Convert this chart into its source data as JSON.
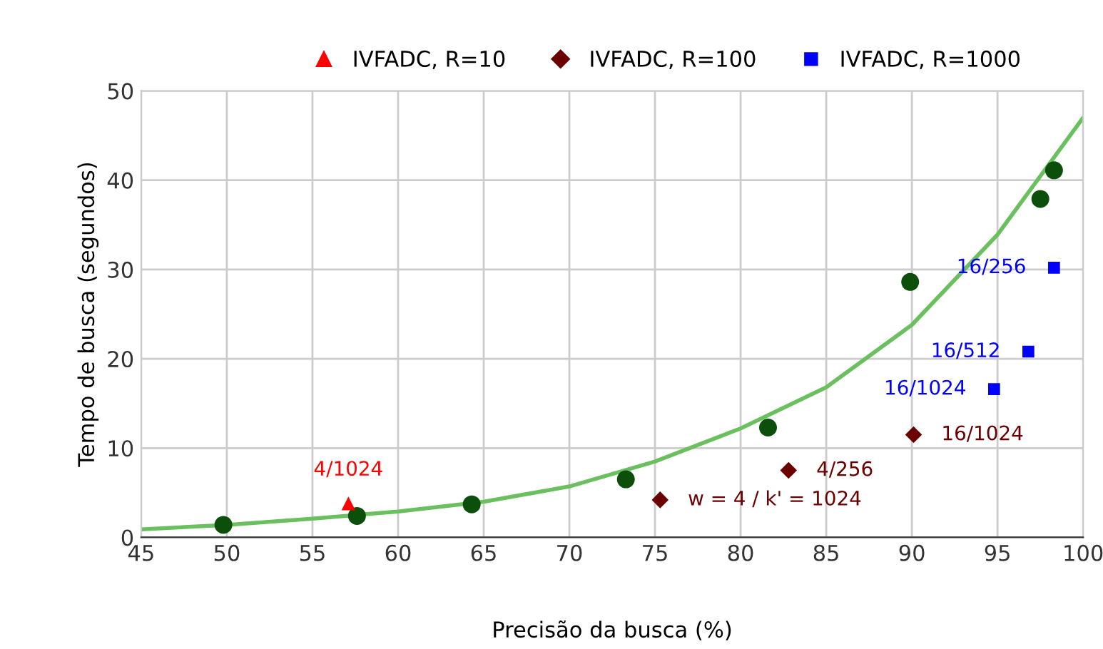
{
  "chart_data": {
    "type": "scatter",
    "xlabel": "Precisão da busca (%)",
    "ylabel": "Tempo de busca (segundos)",
    "xlim": [
      45,
      100
    ],
    "ylim": [
      0,
      50
    ],
    "xticks": [
      45,
      50,
      55,
      60,
      65,
      70,
      75,
      80,
      85,
      90,
      95,
      100
    ],
    "yticks": [
      0,
      10,
      20,
      30,
      40,
      50
    ],
    "grid": true,
    "legend": "top",
    "series": [
      {
        "type": "line",
        "color": "#6abf5e",
        "marker": "none",
        "x": [
          45,
          50,
          55,
          60,
          65,
          70,
          75,
          80,
          85,
          90,
          95,
          100
        ],
        "values": [
          0.9,
          1.4,
          2.1,
          2.9,
          4.0,
          5.7,
          8.5,
          12.2,
          16.8,
          23.8,
          33.9,
          47
        ]
      },
      {
        "color": "#0b4f0b",
        "marker": "circle",
        "x": [
          49.8,
          57.6,
          64.3,
          73.3,
          81.6,
          89.9,
          97.5,
          98.3
        ],
        "values": [
          1.4,
          2.4,
          3.7,
          6.5,
          12.3,
          28.6,
          37.9,
          41.1
        ]
      },
      {
        "name": "IVFADC, R=10",
        "color": "#ff0000",
        "marker": "triangle",
        "x": [
          57.1
        ],
        "values": [
          3.8
        ],
        "value_labels": [
          "4/1024"
        ]
      },
      {
        "name": "IVFADC, R=100",
        "color": "#6b0000",
        "marker": "diamond",
        "x": [
          75.3,
          82.8,
          90.1
        ],
        "values": [
          4.2,
          7.5,
          11.5
        ],
        "value_labels": [
          "w = 4 / k' = 1024",
          "4/256",
          "16/1024"
        ]
      },
      {
        "name": "IVFADC, R=1000",
        "color": "#0000ff",
        "marker": "square",
        "x": [
          94.8,
          96.8,
          98.3
        ],
        "values": [
          16.6,
          20.8,
          30.2
        ],
        "value_labels": [
          "16/1024",
          "16/512",
          "16/256"
        ]
      }
    ]
  }
}
